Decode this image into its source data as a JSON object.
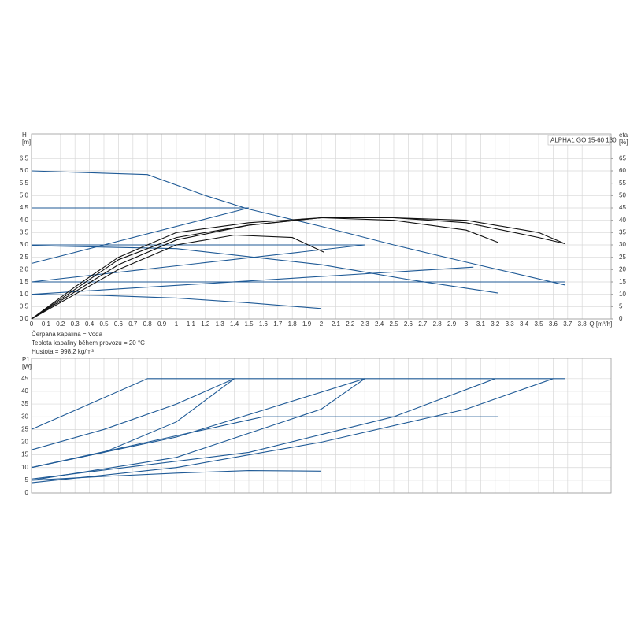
{
  "chart_data": [
    {
      "type": "line",
      "title": "ALPHA1 GO 15-60 130",
      "ylabel_lines": [
        "H",
        "[m]"
      ],
      "y2label_lines": [
        "eta",
        "[%]"
      ],
      "xlabel": "Q [m³/h]",
      "notes": [
        "Čerpaná kapalina = Voda",
        "Teplota kapaliny během provozu = 20 °C",
        "Hustota = 998.2 kg/m³"
      ],
      "xlim": [
        0,
        4.0
      ],
      "ylim": [
        0,
        7.5
      ],
      "y2lim": [
        0,
        75
      ],
      "grid": true,
      "xticks": [
        0,
        0.1,
        0.2,
        0.3,
        0.4,
        0.5,
        0.6,
        0.7,
        0.8,
        0.9,
        1,
        1.1,
        1.2,
        1.3,
        1.4,
        1.5,
        1.6,
        1.7,
        1.8,
        1.9,
        2,
        2.1,
        2.2,
        2.3,
        2.4,
        2.5,
        2.6,
        2.7,
        2.8,
        2.9,
        3,
        3.1,
        3.2,
        3.3,
        3.4,
        3.5,
        3.6,
        3.7,
        3.8
      ],
      "yticks": [
        {
          "value": 0,
          "label": "0.0"
        },
        0.5,
        {
          "value": 1,
          "label": "1.0"
        },
        1.5,
        {
          "value": 2,
          "label": "2.0"
        },
        2.5,
        {
          "value": 3,
          "label": "3.0"
        },
        3.5,
        {
          "value": 4,
          "label": "4.0"
        },
        4.5,
        {
          "value": 5,
          "label": "5.0"
        },
        5.5,
        {
          "value": 6,
          "label": "6.0"
        },
        6.5
      ],
      "y2ticks": [
        0,
        5,
        10,
        15,
        20,
        25,
        30,
        35,
        40,
        45,
        50,
        55,
        60,
        65
      ],
      "series": [
        {
          "color": "#1f5a96",
          "x": [
            0,
            0.8,
            1.2,
            1.5,
            2.0,
            2.5,
            3.0,
            3.68
          ],
          "values": [
            6.0,
            5.85,
            5.0,
            4.45,
            3.75,
            3.0,
            2.3,
            1.38
          ]
        },
        {
          "color": "#1f5a96",
          "x": [
            0,
            1.5
          ],
          "values": [
            4.5,
            4.5
          ]
        },
        {
          "color": "#1f5a96",
          "x": [
            0,
            1.5
          ],
          "values": [
            2.25,
            4.5
          ]
        },
        {
          "color": "#1f5a96",
          "x": [
            0,
            2.3
          ],
          "values": [
            3.0,
            3.0
          ]
        },
        {
          "color": "#1f5a96",
          "x": [
            0,
            2.3
          ],
          "values": [
            1.5,
            3.0
          ]
        },
        {
          "color": "#1f5a96",
          "x": [
            0,
            3.68
          ],
          "values": [
            1.5,
            1.5
          ]
        },
        {
          "color": "#1f5a96",
          "x": [
            0,
            3.05
          ],
          "values": [
            1.0,
            2.1
          ]
        },
        {
          "color": "#1f5a96",
          "x": [
            0,
            1.0,
            2.0,
            2.6,
            3.22
          ],
          "values": [
            2.97,
            2.85,
            2.2,
            1.6,
            1.05
          ]
        },
        {
          "color": "#1f5a96",
          "x": [
            0,
            0.5,
            1.0,
            1.5,
            2.0
          ],
          "values": [
            1.0,
            0.95,
            0.85,
            0.65,
            0.42
          ]
        },
        {
          "color": "#111111",
          "axis": "y2",
          "x": [
            0,
            0.3,
            0.6,
            1.0,
            1.4,
            1.8,
            2.02
          ],
          "values": [
            0,
            10,
            20,
            30,
            34,
            33,
            27
          ]
        },
        {
          "color": "#111111",
          "axis": "y2",
          "x": [
            0,
            0.3,
            0.6,
            1.0,
            1.5,
            2.0,
            2.5,
            3.0,
            3.22
          ],
          "values": [
            0,
            11,
            22,
            32,
            38,
            41,
            40,
            36,
            31
          ]
        },
        {
          "color": "#111111",
          "axis": "y2",
          "x": [
            0,
            0.3,
            0.6,
            1.0,
            1.5,
            2.0,
            2.5,
            3.0,
            3.5,
            3.68
          ],
          "values": [
            0,
            12,
            24,
            33,
            38,
            41,
            41,
            39,
            33,
            30.5
          ]
        },
        {
          "color": "#111111",
          "axis": "y2",
          "x": [
            0,
            0.3,
            0.6,
            1.0,
            1.5,
            2.0,
            2.5,
            3.0,
            3.5,
            3.68
          ],
          "values": [
            0,
            13,
            25,
            35,
            39,
            41,
            41,
            40,
            35,
            30.5
          ]
        }
      ]
    },
    {
      "type": "line",
      "ylabel_lines": [
        "P1",
        "[W]"
      ],
      "xlim": [
        0,
        4.0
      ],
      "ylim": [
        0,
        53
      ],
      "grid": true,
      "yticks": [
        0,
        5,
        10,
        15,
        20,
        25,
        30,
        35,
        40,
        45
      ],
      "series": [
        {
          "color": "#1f5a96",
          "x": [
            0,
            0.8,
            3.68
          ],
          "values": [
            25,
            45,
            45
          ]
        },
        {
          "color": "#1f5a96",
          "x": [
            0,
            0.5,
            1.0,
            1.4
          ],
          "values": [
            17,
            25,
            35,
            45
          ]
        },
        {
          "color": "#1f5a96",
          "x": [
            0,
            0.5,
            1.0,
            1.4
          ],
          "values": [
            10,
            16,
            28,
            45
          ]
        },
        {
          "color": "#1f5a96",
          "x": [
            0,
            1.0,
            2.3
          ],
          "values": [
            10,
            22,
            45
          ]
        },
        {
          "color": "#1f5a96",
          "x": [
            0,
            1.0,
            2.0,
            2.3
          ],
          "values": [
            5,
            14,
            33,
            45
          ]
        },
        {
          "color": "#1f5a96",
          "x": [
            0,
            1.5,
            2.5,
            3.2
          ],
          "values": [
            5.5,
            16,
            30,
            45
          ]
        },
        {
          "color": "#1f5a96",
          "x": [
            0,
            1.0,
            2.0,
            3.0,
            3.6
          ],
          "values": [
            4,
            10,
            20,
            33,
            45
          ]
        },
        {
          "color": "#1f5a96",
          "x": [
            0,
            1.6,
            3.22
          ],
          "values": [
            10,
            30,
            30
          ]
        },
        {
          "color": "#1f5a96",
          "x": [
            0,
            0.5,
            1.0,
            1.5,
            2.0
          ],
          "values": [
            5,
            6.5,
            7.8,
            8.8,
            8.6
          ]
        }
      ]
    }
  ]
}
